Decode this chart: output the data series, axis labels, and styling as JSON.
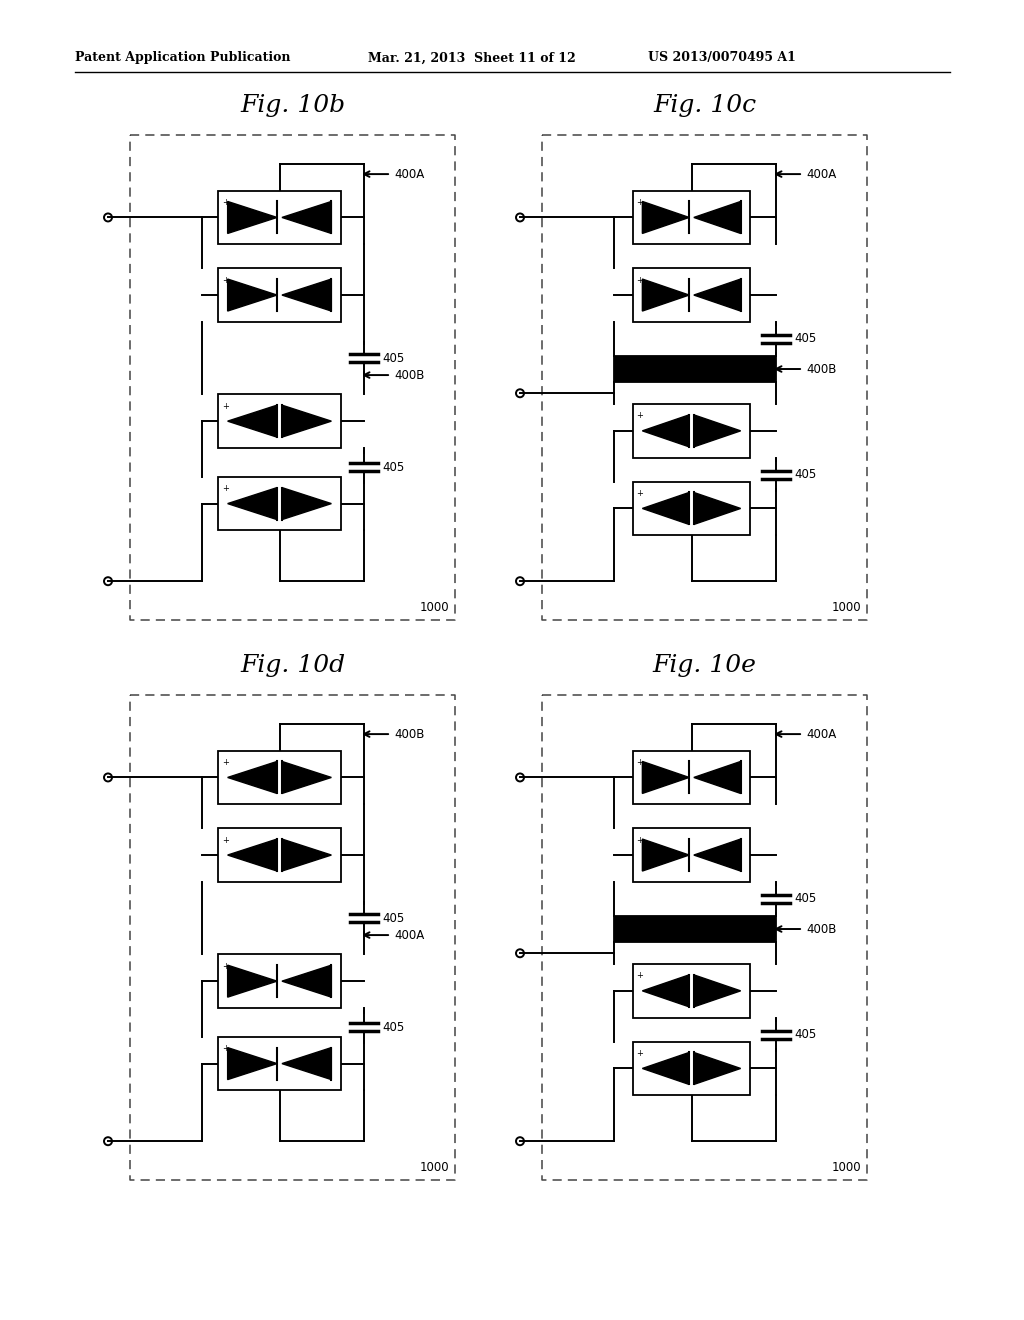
{
  "background_color": "#ffffff",
  "header_text": "Patent Application Publication",
  "header_date": "Mar. 21, 2013  Sheet 11 of 12",
  "header_patent": "US 2013/0070495 A1",
  "figures": [
    {
      "title": "Fig. 10b",
      "top_label": "400A",
      "mid_label": "400B",
      "variant": "b"
    },
    {
      "title": "Fig. 10c",
      "top_label": "400A",
      "mid_label": "400B",
      "variant": "c"
    },
    {
      "title": "Fig. 10d",
      "top_label": "400B",
      "mid_label": "400A",
      "variant": "d"
    },
    {
      "title": "Fig. 10e",
      "top_label": "400A",
      "mid_label": "400B",
      "variant": "e"
    }
  ],
  "label_405": "405",
  "label_1000": "1000"
}
